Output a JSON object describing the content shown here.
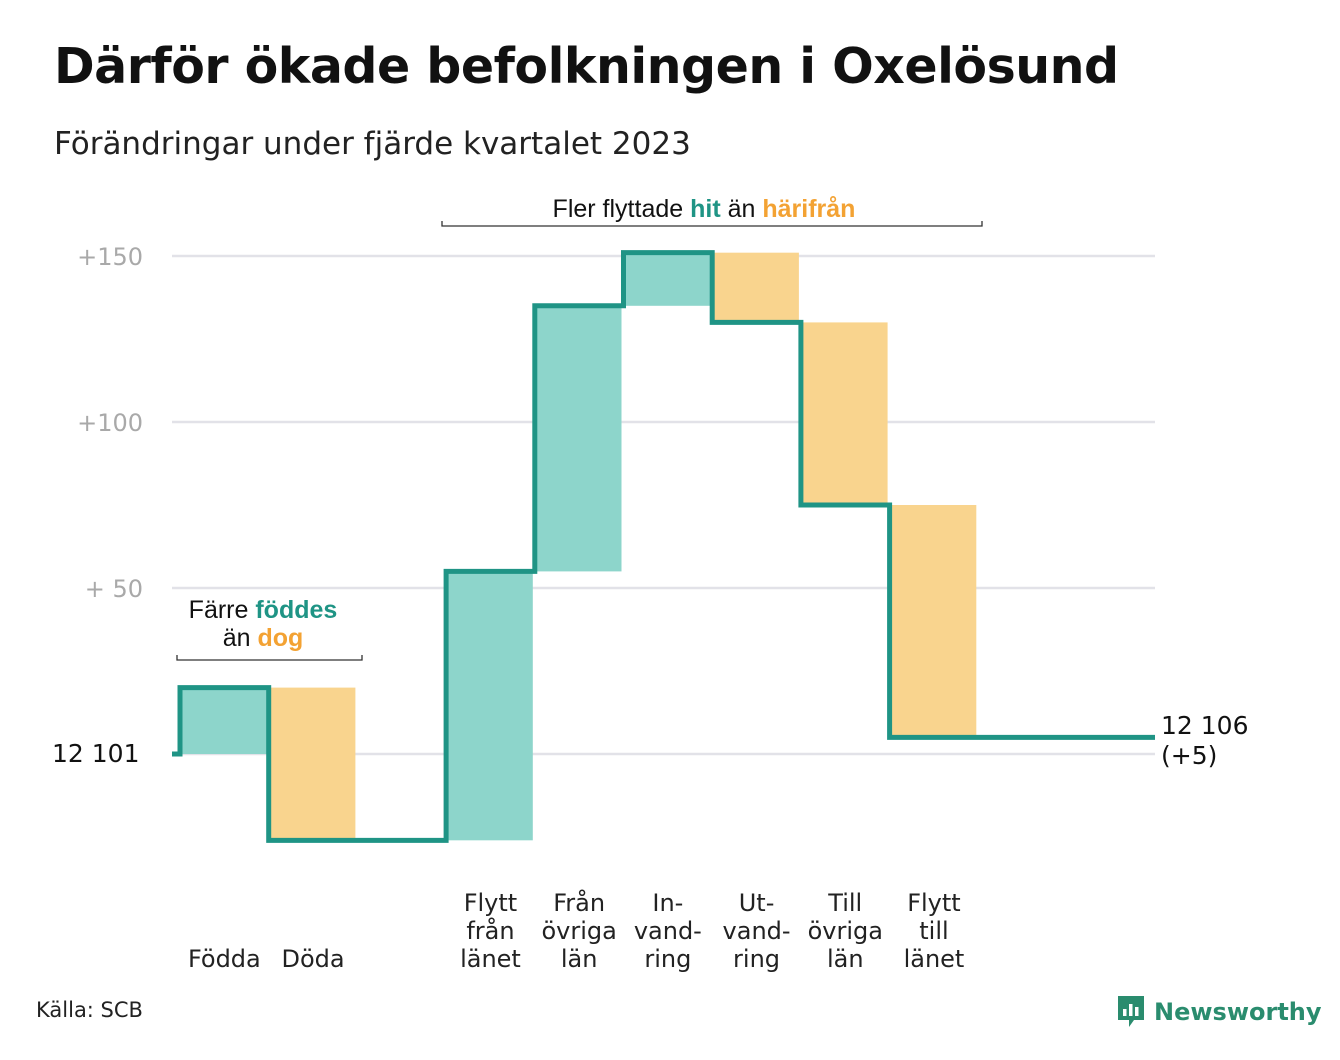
{
  "title": "Därför ökade befolkningen i Oxelösund",
  "subtitle": "Förändringar under fjärde kvartalet 2023",
  "source": "Källa: SCB",
  "brand": "Newsworthy",
  "colors": {
    "increase": "#8dd5cb",
    "decrease": "#f9d48e",
    "line": "#1f9485",
    "accent_increase": "#1f9485",
    "accent_decrease": "#f3a233",
    "grid": "#e2e2e8",
    "tick_text": "#a9a9a9"
  },
  "chart_data": {
    "type": "waterfall",
    "title": "Därför ökade befolkningen i Oxelösund",
    "subtitle": "Förändringar under fjärde kvartalet 2023",
    "start_label": "12  101",
    "start_value": 12101,
    "end_label": [
      "12 106",
      "(+5)"
    ],
    "end_value": 12106,
    "net_change": 5,
    "ylim": [
      -27,
      155
    ],
    "y_ticks": [
      {
        "value": 150,
        "label": "+150"
      },
      {
        "value": 100,
        "label": "+100"
      },
      {
        "value": 50,
        "label": "+  50"
      }
    ],
    "grid": true,
    "steps": [
      {
        "category": [
          "Födda"
        ],
        "change": 20
      },
      {
        "category": [
          "Döda"
        ],
        "change": -46
      },
      {
        "category": [],
        "change": 0
      },
      {
        "category": [
          "Flytt",
          "från",
          "länet"
        ],
        "change": 81
      },
      {
        "category": [
          "Från",
          "övriga",
          "län"
        ],
        "change": 80
      },
      {
        "category": [
          "In-",
          "vand-",
          "ring"
        ],
        "change": 16
      },
      {
        "category": [
          "Ut-",
          "vand-",
          "ring"
        ],
        "change": -21
      },
      {
        "category": [
          "Till",
          "övriga",
          "län"
        ],
        "change": -55
      },
      {
        "category": [
          "Flytt",
          "till",
          "länet"
        ],
        "change": -70
      },
      {
        "category": [],
        "change": 0
      }
    ],
    "annotations": [
      {
        "group": "birth",
        "lines": [
          [
            {
              "text": "Färre",
              "role": "plain"
            },
            {
              "text": "föddes",
              "role": "increase"
            }
          ],
          [
            {
              "text": "än",
              "role": "plain"
            },
            {
              "text": "dog",
              "role": "decrease"
            }
          ]
        ]
      },
      {
        "group": "migration",
        "lines": [
          [
            {
              "text": "Fler flyttade",
              "role": "plain"
            },
            {
              "text": "hit",
              "role": "increase"
            },
            {
              "text": "än",
              "role": "plain"
            },
            {
              "text": "härifrån",
              "role": "decrease"
            }
          ]
        ]
      }
    ]
  }
}
